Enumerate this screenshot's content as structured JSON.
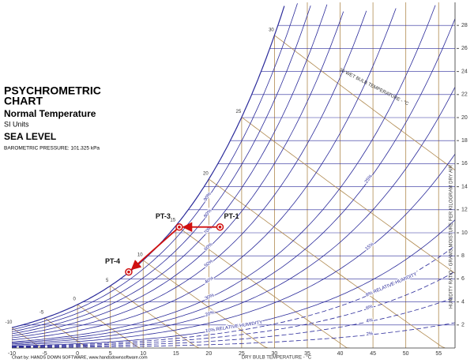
{
  "title": "PSYCHROMETRIC",
  "title_line2": "CHART",
  "subtitle": "Normal Temperature",
  "units": "SI Units",
  "elevation": "SEA LEVEL",
  "pressure_note": "BAROMETRIC PRESSURE: 101.325 kPa",
  "credit": "Chart by: HANDS DOWN SOFTWARE, www.handsdownsoftware.com",
  "chart_data": {
    "type": "psychrometric",
    "x_label": "DRY BULB TEMPERATURE - °C",
    "y2_label": "HUMIDITY RATIO - GRAMS MOISTURE PER KILOGRAM DRY AIR",
    "wet_bulb_label": "30 WET BULB TEMPERATURE - °C",
    "xlim": [
      -10,
      57.5
    ],
    "xticks": [
      -10,
      -5,
      0,
      5,
      10,
      15,
      20,
      25,
      30,
      35,
      40,
      45,
      50,
      55
    ],
    "y2lim": [
      0,
      30
    ],
    "y2ticks": [
      2,
      4,
      6,
      8,
      10,
      12,
      14,
      16,
      18,
      20,
      22,
      24,
      26,
      28
    ],
    "wet_bulb_lines": [
      -10,
      -5,
      0,
      5,
      10,
      15,
      20,
      25,
      30
    ],
    "rh_curves": [
      {
        "value": 10,
        "label": "10% RELATIVE HUMIDITY"
      },
      {
        "value": 20,
        "label": "20%"
      },
      {
        "value": 30,
        "label": "30%"
      },
      {
        "value": 40,
        "label": "40%"
      },
      {
        "value": 50,
        "label": "50%"
      },
      {
        "value": 60,
        "label": "60%"
      },
      {
        "value": 70,
        "label": "70%"
      },
      {
        "value": 80,
        "label": "80%"
      },
      {
        "value": 90,
        "label": "90%"
      },
      {
        "value": 15,
        "label": "15%"
      },
      {
        "value": 25,
        "label": "25%"
      },
      {
        "value": 8,
        "label": "8% RELATIVE HUMIDITY"
      },
      {
        "value": 6,
        "label": "6%"
      },
      {
        "value": 4,
        "label": "4%"
      },
      {
        "value": 2,
        "label": "2%"
      }
    ],
    "grid_color": "#b08a50",
    "curve_color": "#2a2a9a",
    "process_color": "#d01010",
    "points": {
      "names": [
        "PT-1",
        "PT-3",
        "PT-4"
      ],
      "x": [
        21.7,
        15.5,
        7.8
      ],
      "values": [
        10.5,
        10.5,
        6.6
      ]
    }
  }
}
